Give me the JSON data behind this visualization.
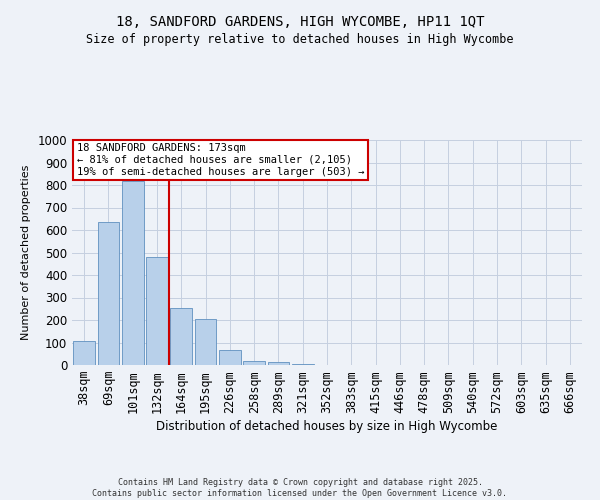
{
  "title_line1": "18, SANDFORD GARDENS, HIGH WYCOMBE, HP11 1QT",
  "title_line2": "Size of property relative to detached houses in High Wycombe",
  "xlabel": "Distribution of detached houses by size in High Wycombe",
  "ylabel": "Number of detached properties",
  "categories": [
    "38sqm",
    "69sqm",
    "101sqm",
    "132sqm",
    "164sqm",
    "195sqm",
    "226sqm",
    "258sqm",
    "289sqm",
    "321sqm",
    "352sqm",
    "383sqm",
    "415sqm",
    "446sqm",
    "478sqm",
    "509sqm",
    "540sqm",
    "572sqm",
    "603sqm",
    "635sqm",
    "666sqm"
  ],
  "values": [
    107,
    635,
    820,
    480,
    255,
    205,
    65,
    20,
    15,
    5,
    0,
    0,
    0,
    0,
    0,
    0,
    0,
    0,
    0,
    0,
    0
  ],
  "bar_color": "#b8d0ea",
  "bar_edge_color": "#6090c0",
  "vline_color": "#cc0000",
  "vline_pos": 3.5,
  "annotation_text": "18 SANDFORD GARDENS: 173sqm\n← 81% of detached houses are smaller (2,105)\n19% of semi-detached houses are larger (503) →",
  "annotation_box_facecolor": "#ffffff",
  "annotation_box_edgecolor": "#cc0000",
  "ylim": [
    0,
    1000
  ],
  "yticks": [
    0,
    100,
    200,
    300,
    400,
    500,
    600,
    700,
    800,
    900,
    1000
  ],
  "background_color": "#eef2f8",
  "grid_color": "#c5cfe0",
  "footer_line1": "Contains HM Land Registry data © Crown copyright and database right 2025.",
  "footer_line2": "Contains public sector information licensed under the Open Government Licence v3.0."
}
